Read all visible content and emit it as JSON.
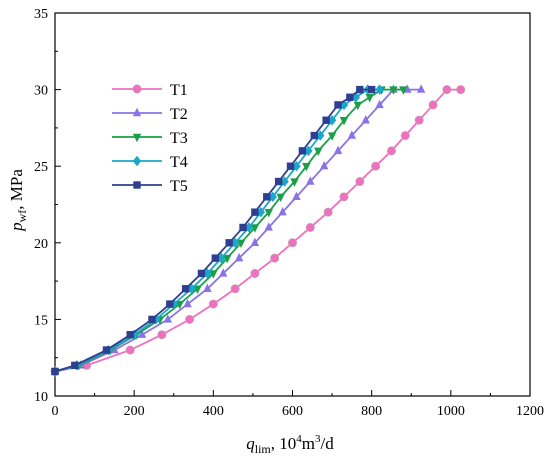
{
  "chart_data": {
    "type": "line",
    "xlabel_main": "q",
    "xlabel_sub": "lim",
    "xlabel_unit_prefix": ",   10",
    "xlabel_unit_sup1": "4",
    "xlabel_unit_mid": "m",
    "xlabel_unit_sup2": "3",
    "xlabel_unit_suffix": "/d",
    "ylabel_main": "p",
    "ylabel_sub": "wf",
    "ylabel_unit": ",  MPa",
    "xlim": [
      0,
      1200
    ],
    "ylim": [
      10,
      35
    ],
    "xticks": [
      0,
      200,
      400,
      600,
      800,
      1000,
      1200
    ],
    "yticks": [
      10,
      15,
      20,
      25,
      30,
      35
    ],
    "legend_position": "upper-left",
    "series": [
      {
        "name": "T1",
        "color": "#f06fbf",
        "marker": "circle",
        "x": [
          0,
          80,
          190,
          270,
          340,
          400,
          455,
          505,
          555,
          600,
          645,
          690,
          730,
          770,
          810,
          850,
          885,
          920,
          955,
          990,
          1025
        ],
        "y": [
          11.6,
          12,
          13,
          14,
          15,
          16,
          17,
          18,
          19,
          20,
          21,
          22,
          23,
          24,
          25,
          26,
          27,
          28,
          29,
          30,
          30
        ]
      },
      {
        "name": "T2",
        "color": "#8a73e6",
        "marker": "triangle-up",
        "x": [
          0,
          65,
          150,
          220,
          285,
          335,
          385,
          425,
          465,
          505,
          540,
          575,
          610,
          645,
          680,
          715,
          750,
          785,
          820,
          855,
          890,
          925
        ],
        "y": [
          11.6,
          12,
          13,
          14,
          15,
          16,
          17,
          18,
          19,
          20,
          21,
          22,
          23,
          24,
          25,
          26,
          27,
          28,
          29,
          30,
          30,
          30
        ]
      },
      {
        "name": "T3",
        "color": "#1a9f49",
        "marker": "triangle-down",
        "x": [
          0,
          60,
          140,
          205,
          265,
          315,
          360,
          400,
          435,
          470,
          505,
          540,
          570,
          605,
          635,
          665,
          700,
          730,
          765,
          795,
          825,
          855,
          880
        ],
        "y": [
          11.6,
          12,
          13,
          14,
          15,
          16,
          17,
          18,
          19,
          20,
          21,
          22,
          23,
          24,
          25,
          26,
          27,
          28,
          29,
          29.5,
          30,
          30,
          30
        ]
      },
      {
        "name": "T4",
        "color": "#1ba7c9",
        "marker": "diamond",
        "x": [
          0,
          55,
          135,
          200,
          255,
          300,
          345,
          385,
          420,
          455,
          490,
          520,
          550,
          580,
          610,
          640,
          670,
          700,
          730,
          760,
          790,
          820
        ],
        "y": [
          11.6,
          12,
          13,
          14,
          15,
          16,
          17,
          18,
          19,
          20,
          21,
          22,
          23,
          24,
          25,
          26,
          27,
          28,
          29,
          29.5,
          30,
          30
        ]
      },
      {
        "name": "T5",
        "color": "#2e3f91",
        "marker": "square",
        "x": [
          0,
          50,
          130,
          190,
          245,
          290,
          330,
          370,
          405,
          440,
          475,
          505,
          535,
          565,
          595,
          625,
          655,
          685,
          715,
          745,
          770,
          800
        ],
        "y": [
          11.6,
          12,
          13,
          14,
          15,
          16,
          17,
          18,
          19,
          20,
          21,
          22,
          23,
          24,
          25,
          26,
          27,
          28,
          29,
          29.5,
          30,
          30
        ]
      }
    ]
  }
}
